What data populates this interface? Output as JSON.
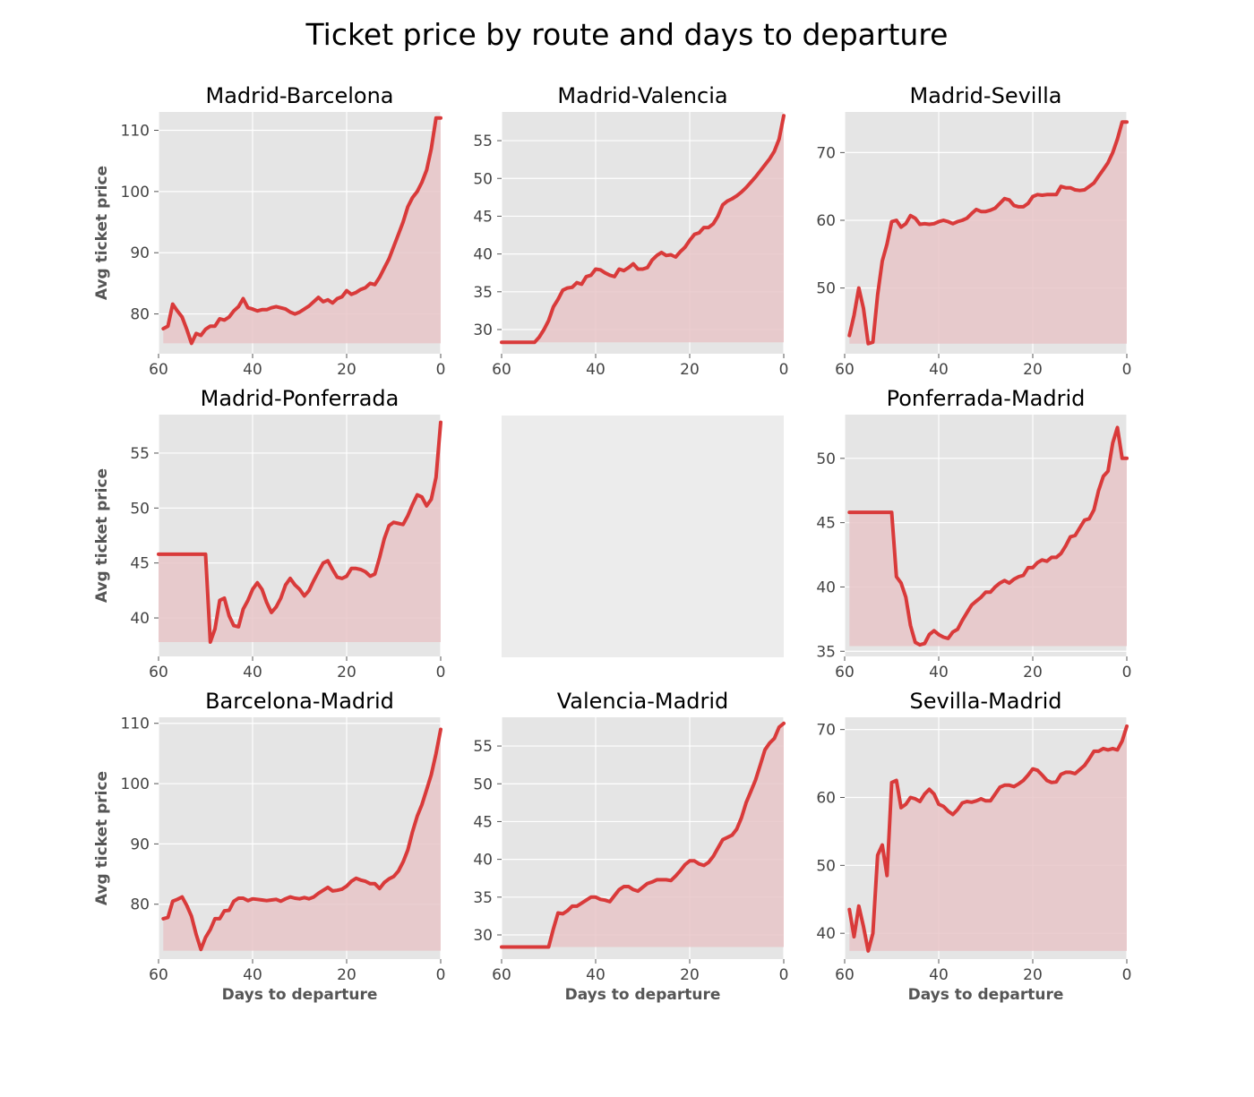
{
  "figure": {
    "title": "Ticket price by route and days to departure",
    "line_color": "#d93a3a",
    "fill_color": "#e8c5c8",
    "panel_bg": "#e5e5e5",
    "empty_panel_bg": "#ececec"
  },
  "chart_data": [
    {
      "type": "area",
      "title": "Madrid-Barcelona",
      "xlabel": "",
      "ylabel": "Avg ticket price",
      "xlim": [
        60,
        0
      ],
      "ylim": [
        73.5,
        113
      ],
      "xticks": [
        60,
        40,
        20,
        0
      ],
      "yticks": [
        80,
        90,
        100,
        110
      ],
      "fill_base": 75.2,
      "x": [
        59,
        58,
        57,
        56,
        55,
        54,
        53,
        52,
        51,
        50,
        49,
        48,
        47,
        46,
        45,
        44,
        43,
        42,
        41,
        40,
        39,
        38,
        37,
        36,
        35,
        34,
        33,
        32,
        31,
        30,
        29,
        28,
        27,
        26,
        25,
        24,
        23,
        22,
        21,
        20,
        19,
        18,
        17,
        16,
        15,
        14,
        13,
        12,
        11,
        10,
        9,
        8,
        7,
        6,
        5,
        4,
        3,
        2,
        1,
        0
      ],
      "y": [
        77.6,
        78.0,
        81.6,
        80.5,
        79.5,
        77.5,
        75.2,
        76.8,
        76.5,
        77.5,
        78.0,
        78.0,
        79.2,
        79.0,
        79.5,
        80.5,
        81.2,
        82.5,
        81.0,
        80.8,
        80.5,
        80.7,
        80.7,
        81.0,
        81.2,
        81.0,
        80.8,
        80.3,
        80.0,
        80.3,
        80.8,
        81.3,
        82.0,
        82.7,
        82.0,
        82.3,
        81.8,
        82.5,
        82.8,
        83.8,
        83.2,
        83.5,
        84.0,
        84.3,
        85.0,
        84.8,
        86.0,
        87.5,
        89.0,
        91.0,
        93.0,
        95.0,
        97.5,
        99.0,
        100.0,
        101.5,
        103.5,
        107.0,
        112.0,
        112.0
      ]
    },
    {
      "type": "area",
      "title": "Madrid-Valencia",
      "xlabel": "",
      "ylabel": "",
      "xlim": [
        60,
        0
      ],
      "ylim": [
        26.8,
        58.8
      ],
      "xticks": [
        60,
        40,
        20,
        0
      ],
      "yticks": [
        30,
        35,
        40,
        45,
        50,
        55
      ],
      "fill_base": 28.3,
      "x": [
        60,
        59,
        58,
        57,
        56,
        55,
        54,
        53,
        52,
        51,
        50,
        49,
        48,
        47,
        46,
        45,
        44,
        43,
        42,
        41,
        40,
        39,
        38,
        37,
        36,
        35,
        34,
        33,
        32,
        31,
        30,
        29,
        28,
        27,
        26,
        25,
        24,
        23,
        22,
        21,
        20,
        19,
        18,
        17,
        16,
        15,
        14,
        13,
        12,
        11,
        10,
        9,
        8,
        7,
        6,
        5,
        4,
        3,
        2,
        1,
        0
      ],
      "y": [
        28.3,
        28.3,
        28.3,
        28.3,
        28.3,
        28.3,
        28.3,
        28.3,
        29.0,
        30.0,
        31.2,
        33.0,
        34.0,
        35.2,
        35.5,
        35.6,
        36.2,
        36.0,
        37.0,
        37.2,
        38.0,
        37.9,
        37.5,
        37.2,
        37.0,
        38.0,
        37.8,
        38.2,
        38.7,
        38.0,
        38.0,
        38.2,
        39.2,
        39.8,
        40.2,
        39.8,
        39.9,
        39.6,
        40.3,
        40.9,
        41.8,
        42.6,
        42.8,
        43.5,
        43.5,
        44.0,
        45.0,
        46.5,
        47.0,
        47.3,
        47.7,
        48.2,
        48.8,
        49.5,
        50.2,
        51.0,
        51.8,
        52.6,
        53.6,
        55.2,
        58.3
      ]
    },
    {
      "type": "area",
      "title": "Madrid-Sevilla",
      "xlabel": "",
      "ylabel": "",
      "xlim": [
        60,
        0
      ],
      "ylim": [
        40.3,
        76.0
      ],
      "xticks": [
        60,
        40,
        20,
        0
      ],
      "yticks": [
        50,
        60,
        70
      ],
      "fill_base": 41.8,
      "x": [
        59,
        58,
        57,
        56,
        55,
        54,
        53,
        52,
        51,
        50,
        49,
        48,
        47,
        46,
        45,
        44,
        43,
        42,
        41,
        40,
        39,
        38,
        37,
        36,
        35,
        34,
        33,
        32,
        31,
        30,
        29,
        28,
        27,
        26,
        25,
        24,
        23,
        22,
        21,
        20,
        19,
        18,
        17,
        16,
        15,
        14,
        13,
        12,
        11,
        10,
        9,
        8,
        7,
        6,
        5,
        4,
        3,
        2,
        1,
        0
      ],
      "y": [
        43.0,
        46.0,
        50.0,
        47.0,
        41.8,
        42.0,
        49.0,
        54.0,
        56.5,
        59.8,
        60.0,
        59.0,
        59.5,
        60.7,
        60.3,
        59.4,
        59.5,
        59.4,
        59.5,
        59.8,
        60.0,
        59.8,
        59.5,
        59.8,
        60.0,
        60.3,
        61.0,
        61.6,
        61.3,
        61.3,
        61.5,
        61.8,
        62.5,
        63.2,
        63.0,
        62.2,
        62.0,
        62.0,
        62.5,
        63.5,
        63.8,
        63.7,
        63.8,
        63.8,
        63.8,
        65.0,
        64.8,
        64.8,
        64.5,
        64.4,
        64.5,
        65.0,
        65.5,
        66.5,
        67.5,
        68.5,
        70.0,
        72.0,
        74.5,
        74.5
      ]
    },
    {
      "type": "area",
      "title": "Madrid-Ponferrada",
      "xlabel": "",
      "ylabel": "Avg ticket price",
      "xlim": [
        60,
        0
      ],
      "ylim": [
        36.5,
        58.5
      ],
      "xticks": [
        60,
        40,
        20,
        0
      ],
      "yticks": [
        40,
        45,
        50,
        55
      ],
      "fill_base": 37.8,
      "x": [
        60,
        50,
        49,
        48,
        47,
        46,
        45,
        44,
        43,
        42,
        41,
        40,
        39,
        38,
        37,
        36,
        35,
        34,
        33,
        32,
        31,
        30,
        29,
        28,
        27,
        26,
        25,
        24,
        23,
        22,
        21,
        20,
        19,
        18,
        17,
        16,
        15,
        14,
        13,
        12,
        11,
        10,
        9,
        8,
        7,
        6,
        5,
        4,
        3,
        2,
        1,
        0
      ],
      "y": [
        45.8,
        45.8,
        37.8,
        39.0,
        41.6,
        41.8,
        40.2,
        39.3,
        39.2,
        40.8,
        41.6,
        42.6,
        43.2,
        42.6,
        41.4,
        40.5,
        41.0,
        41.8,
        43.0,
        43.6,
        43.0,
        42.6,
        42.0,
        42.5,
        43.4,
        44.2,
        45.0,
        45.2,
        44.4,
        43.7,
        43.6,
        43.8,
        44.5,
        44.5,
        44.4,
        44.2,
        43.8,
        44.0,
        45.5,
        47.2,
        48.4,
        48.7,
        48.6,
        48.5,
        49.3,
        50.3,
        51.2,
        51.0,
        50.2,
        50.8,
        52.8,
        57.8
      ]
    },
    {
      "type": "area",
      "title": "",
      "xlabel": "",
      "ylabel": "",
      "empty": true
    },
    {
      "type": "area",
      "title": "Ponferrada-Madrid",
      "xlabel": "",
      "ylabel": "",
      "xlim": [
        60,
        0
      ],
      "ylim": [
        34.6,
        53.4
      ],
      "xticks": [
        60,
        40,
        20,
        0
      ],
      "yticks": [
        35,
        40,
        45,
        50
      ],
      "fill_base": 35.4,
      "x": [
        59,
        50,
        49,
        48,
        47,
        46,
        45,
        44,
        43,
        42,
        41,
        40,
        39,
        38,
        37,
        36,
        35,
        34,
        33,
        32,
        31,
        30,
        29,
        28,
        27,
        26,
        25,
        24,
        23,
        22,
        21,
        20,
        19,
        18,
        17,
        16,
        15,
        14,
        13,
        12,
        11,
        10,
        9,
        8,
        7,
        6,
        5,
        4,
        3,
        2,
        1,
        0
      ],
      "y": [
        45.8,
        45.8,
        40.8,
        40.3,
        39.2,
        37.0,
        35.7,
        35.5,
        35.6,
        36.3,
        36.6,
        36.3,
        36.1,
        36.0,
        36.5,
        36.7,
        37.4,
        38.0,
        38.6,
        38.9,
        39.2,
        39.6,
        39.6,
        40.0,
        40.3,
        40.5,
        40.3,
        40.6,
        40.8,
        40.9,
        41.5,
        41.5,
        41.9,
        42.1,
        42.0,
        42.3,
        42.3,
        42.6,
        43.2,
        43.9,
        44.0,
        44.6,
        45.2,
        45.3,
        46.0,
        47.5,
        48.6,
        49.0,
        51.2,
        52.4,
        50.0,
        50.0
      ]
    },
    {
      "type": "area",
      "title": "Barcelona-Madrid",
      "xlabel": "Days to departure",
      "ylabel": "Avg ticket price",
      "xlim": [
        60,
        0
      ],
      "ylim": [
        70.9,
        111.0
      ],
      "xticks": [
        60,
        40,
        20,
        0
      ],
      "yticks": [
        80,
        90,
        100,
        110
      ],
      "fill_base": 72.3,
      "x": [
        59,
        58,
        57,
        56,
        55,
        54,
        53,
        52,
        51,
        50,
        49,
        48,
        47,
        46,
        45,
        44,
        43,
        42,
        41,
        40,
        39,
        38,
        37,
        36,
        35,
        34,
        33,
        32,
        31,
        30,
        29,
        28,
        27,
        26,
        25,
        24,
        23,
        22,
        21,
        20,
        19,
        18,
        17,
        16,
        15,
        14,
        13,
        12,
        11,
        10,
        9,
        8,
        7,
        6,
        5,
        4,
        3,
        2,
        1,
        0
      ],
      "y": [
        77.6,
        77.8,
        80.5,
        80.8,
        81.2,
        79.8,
        78.0,
        75.0,
        72.5,
        74.5,
        75.8,
        77.6,
        77.6,
        78.9,
        79.0,
        80.5,
        81.0,
        81.0,
        80.6,
        80.9,
        80.8,
        80.7,
        80.6,
        80.7,
        80.8,
        80.5,
        80.9,
        81.2,
        81.0,
        80.9,
        81.1,
        80.9,
        81.2,
        81.8,
        82.3,
        82.8,
        82.2,
        82.3,
        82.5,
        83.0,
        83.8,
        84.3,
        84.0,
        83.8,
        83.4,
        83.4,
        82.6,
        83.6,
        84.2,
        84.6,
        85.5,
        87.0,
        89.0,
        92.0,
        94.6,
        96.5,
        99.0,
        101.5,
        105.0,
        109.0
      ]
    },
    {
      "type": "area",
      "title": "Valencia-Madrid",
      "xlabel": "Days to departure",
      "ylabel": "",
      "xlim": [
        60,
        0
      ],
      "ylim": [
        26.8,
        58.8
      ],
      "xticks": [
        60,
        40,
        20,
        0
      ],
      "yticks": [
        30,
        35,
        40,
        45,
        50,
        55
      ],
      "fill_base": 28.4,
      "x": [
        60,
        59,
        58,
        57,
        56,
        55,
        54,
        53,
        52,
        51,
        50,
        49,
        48,
        47,
        46,
        45,
        44,
        43,
        42,
        41,
        40,
        39,
        38,
        37,
        36,
        35,
        34,
        33,
        32,
        31,
        30,
        29,
        28,
        27,
        26,
        25,
        24,
        23,
        22,
        21,
        20,
        19,
        18,
        17,
        16,
        15,
        14,
        13,
        12,
        11,
        10,
        9,
        8,
        7,
        6,
        5,
        4,
        3,
        2,
        1,
        0
      ],
      "y": [
        28.4,
        28.4,
        28.4,
        28.4,
        28.4,
        28.4,
        28.4,
        28.4,
        28.4,
        28.4,
        28.4,
        30.8,
        32.9,
        32.8,
        33.2,
        33.8,
        33.8,
        34.2,
        34.6,
        35.0,
        35.0,
        34.7,
        34.6,
        34.4,
        35.2,
        36.0,
        36.4,
        36.4,
        36.0,
        35.8,
        36.3,
        36.8,
        37.0,
        37.3,
        37.3,
        37.3,
        37.2,
        37.8,
        38.5,
        39.3,
        39.8,
        39.8,
        39.4,
        39.2,
        39.6,
        40.4,
        41.5,
        42.6,
        42.9,
        43.2,
        44.0,
        45.5,
        47.5,
        49.0,
        50.5,
        52.5,
        54.5,
        55.4,
        56.0,
        57.5,
        58.0
      ]
    },
    {
      "type": "area",
      "title": "Sevilla-Madrid",
      "xlabel": "Days to departure",
      "ylabel": "",
      "xlim": [
        60,
        0
      ],
      "ylim": [
        36.2,
        71.8
      ],
      "xticks": [
        60,
        40,
        20,
        0
      ],
      "yticks": [
        40,
        50,
        60,
        70
      ],
      "fill_base": 37.4,
      "x": [
        59,
        58,
        57,
        56,
        55,
        54,
        53,
        52,
        51,
        50,
        49,
        48,
        47,
        46,
        45,
        44,
        43,
        42,
        41,
        40,
        39,
        38,
        37,
        36,
        35,
        34,
        33,
        32,
        31,
        30,
        29,
        28,
        27,
        26,
        25,
        24,
        23,
        22,
        21,
        20,
        19,
        18,
        17,
        16,
        15,
        14,
        13,
        12,
        11,
        10,
        9,
        8,
        7,
        6,
        5,
        4,
        3,
        2,
        1,
        0
      ],
      "y": [
        43.5,
        39.5,
        44.0,
        41.0,
        37.4,
        40.0,
        51.5,
        53.0,
        48.5,
        62.2,
        62.5,
        58.5,
        59.0,
        60.0,
        59.8,
        59.4,
        60.5,
        61.2,
        60.5,
        59.0,
        58.7,
        58.0,
        57.5,
        58.2,
        59.2,
        59.4,
        59.3,
        59.5,
        59.8,
        59.5,
        59.5,
        60.5,
        61.5,
        61.8,
        61.8,
        61.6,
        62.0,
        62.5,
        63.3,
        64.2,
        64.0,
        63.3,
        62.5,
        62.2,
        62.3,
        63.4,
        63.7,
        63.7,
        63.5,
        64.1,
        64.7,
        65.7,
        66.8,
        66.8,
        67.2,
        67.0,
        67.2,
        67.0,
        68.3,
        70.5
      ]
    }
  ]
}
